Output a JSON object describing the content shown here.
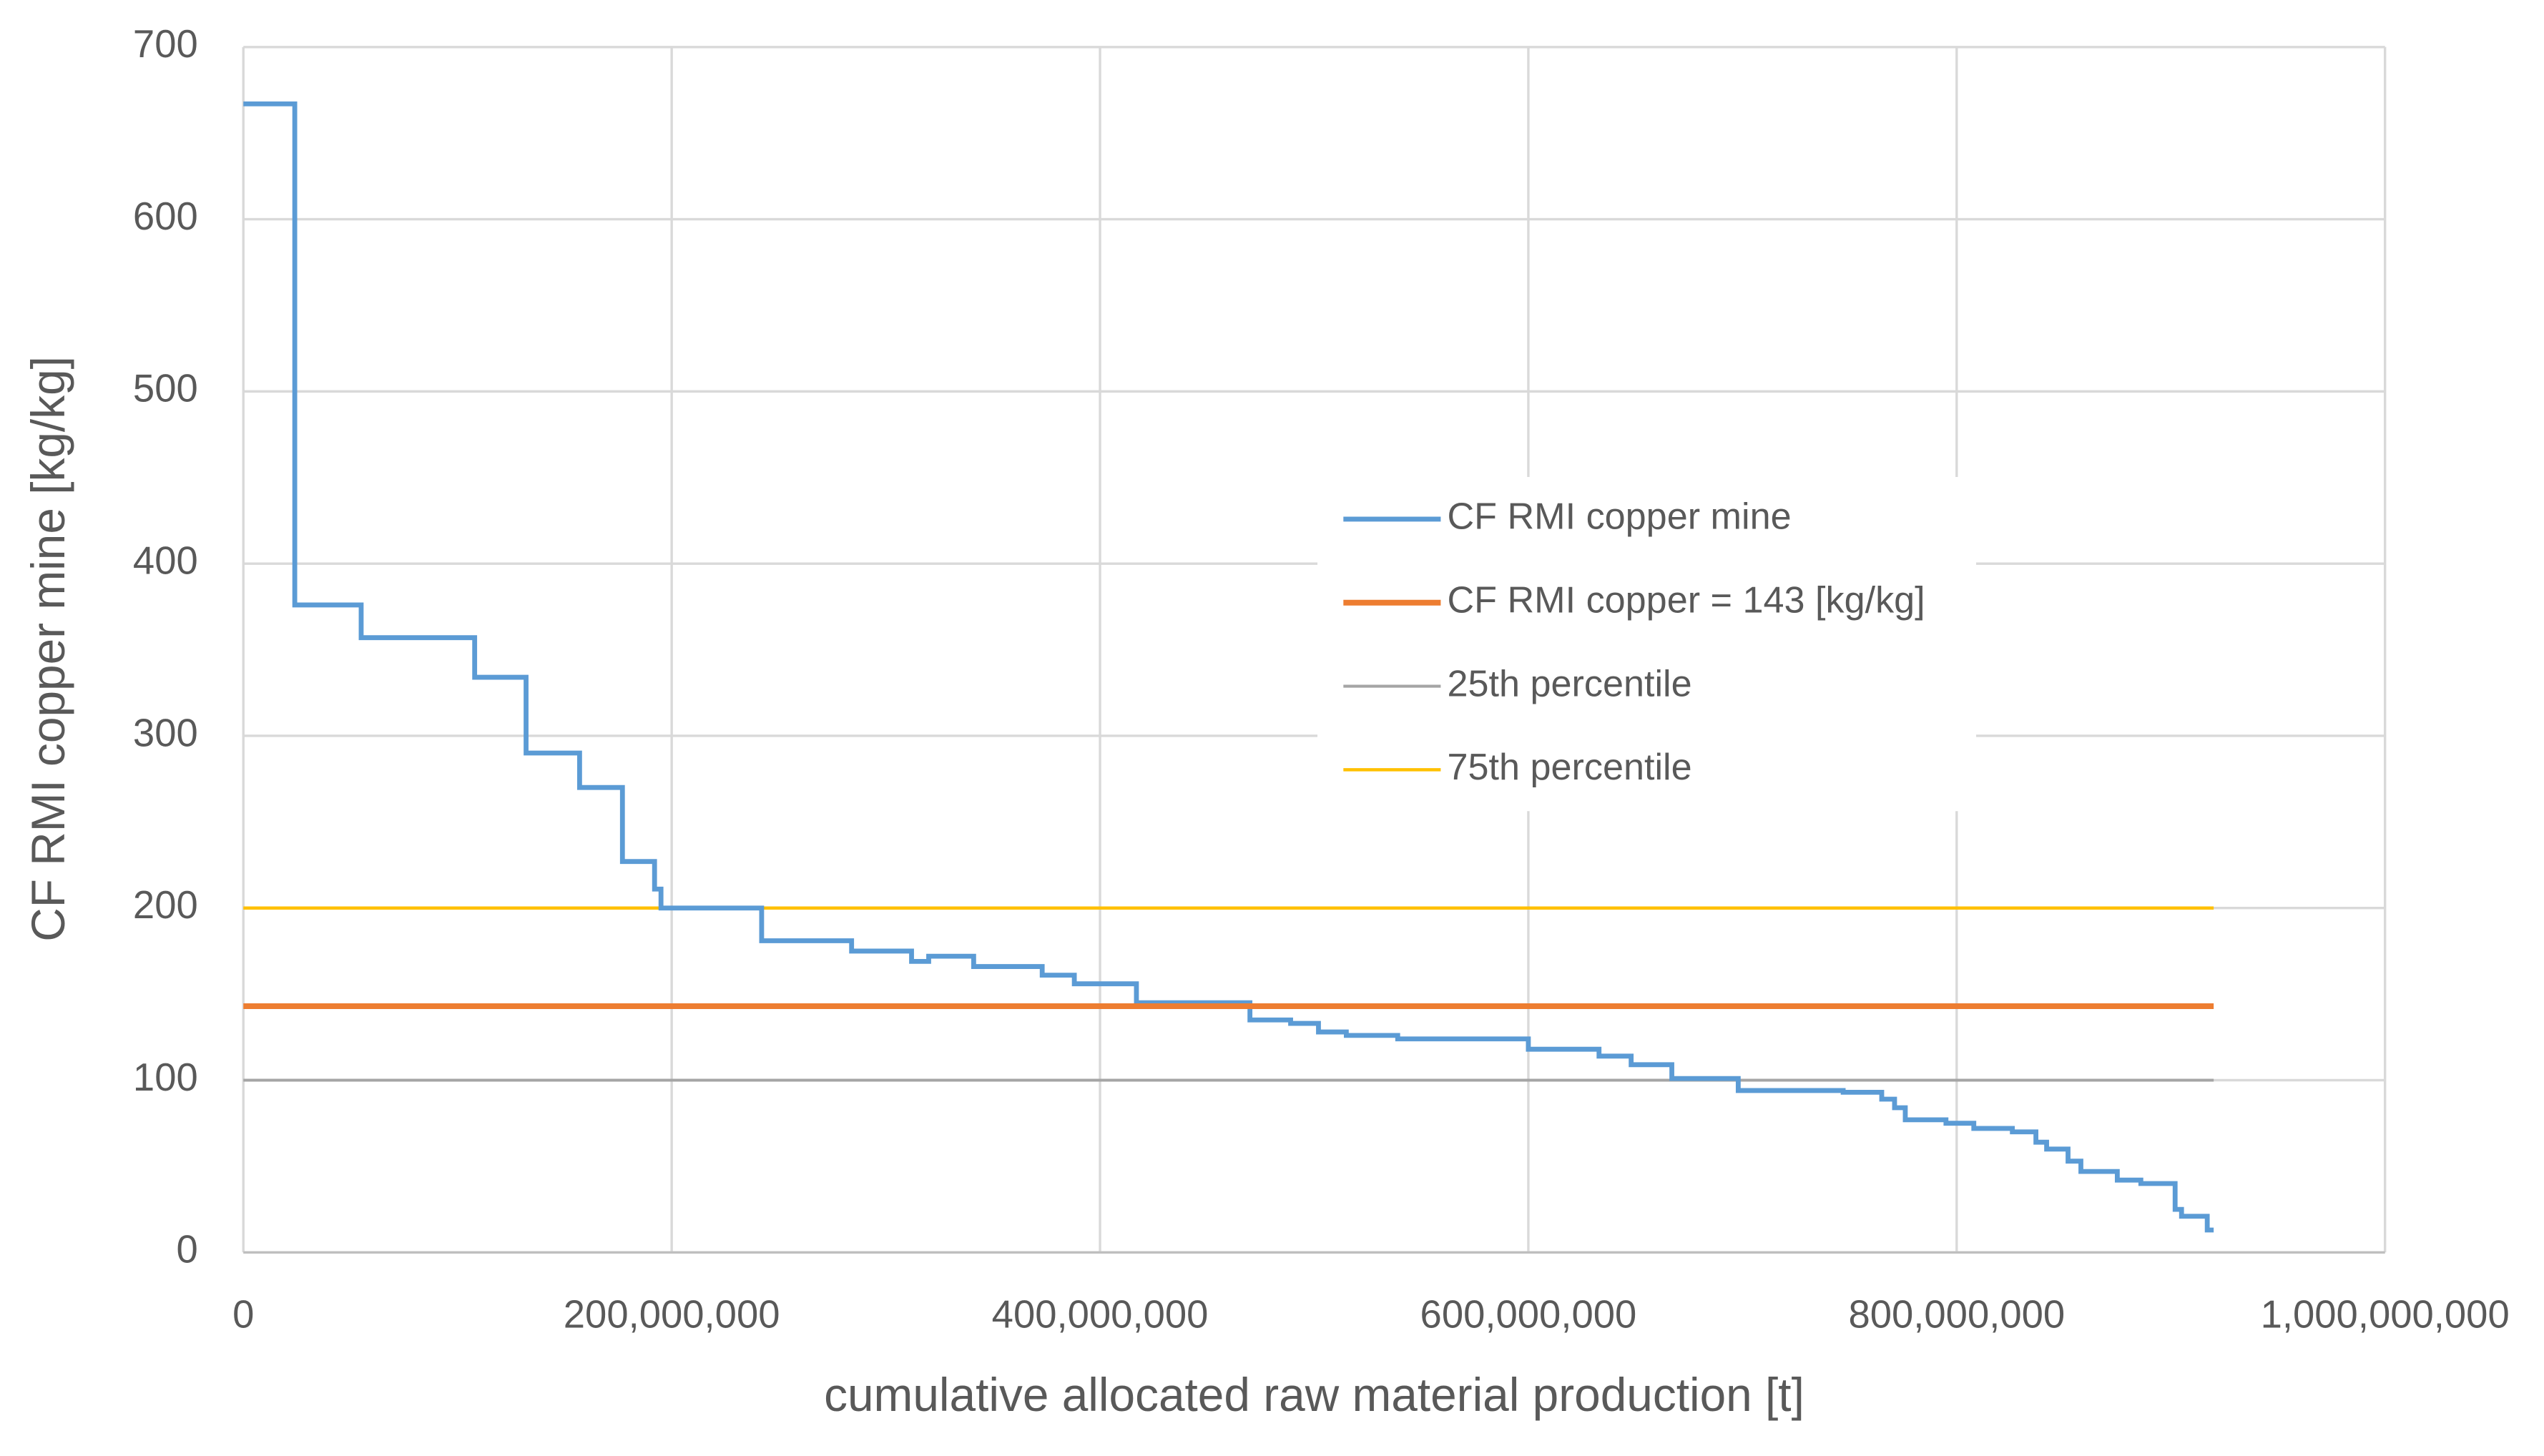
{
  "chart_data": {
    "type": "line",
    "xlabel": "cumulative allocated raw material production [t]",
    "ylabel": "CF RMI copper mine [kg/kg]",
    "xlim": [
      0,
      1000000000
    ],
    "ylim": [
      0,
      700
    ],
    "xticks": [
      0,
      {
        "value": 200000000,
        "label": "200,000,000"
      },
      {
        "value": 400000000,
        "label": "400,000,000"
      },
      {
        "value": 600000000,
        "label": "600,000,000"
      },
      {
        "value": 800000000,
        "label": "800,000,000"
      },
      {
        "value": 1000000000,
        "label": "1,000,000,000"
      }
    ],
    "yticks": [
      0,
      100,
      200,
      300,
      400,
      500,
      600,
      700
    ],
    "grid": true,
    "series": [
      {
        "name": "CF RMI copper mine",
        "color": "#5b9bd5",
        "width": 3,
        "x": [
          0,
          24000000,
          24000000,
          55000000,
          55000000,
          108000000,
          108000000,
          132000000,
          132000000,
          157000000,
          157000000,
          177000000,
          177000000,
          192000000,
          192000000,
          195000000,
          195000000,
          242000000,
          242000000,
          284000000,
          284000000,
          312000000,
          312000000,
          320000000,
          320000000,
          341000000,
          341000000,
          373000000,
          373000000,
          388000000,
          388000000,
          417000000,
          417000000,
          470000000,
          470000000,
          489000000,
          489000000,
          502000000,
          502000000,
          515000000,
          515000000,
          539000000,
          539000000,
          600000000,
          600000000,
          633000000,
          633000000,
          648000000,
          648000000,
          667000000,
          667000000,
          698000000,
          698000000,
          747000000,
          747000000,
          765000000,
          765000000,
          771000000,
          771000000,
          776000000,
          776000000,
          795000000,
          795000000,
          808000000,
          808000000,
          826000000,
          826000000,
          837000000,
          837000000,
          842000000,
          842000000,
          852000000,
          852000000,
          858000000,
          858000000,
          875000000,
          875000000,
          886000000,
          886000000,
          902000000,
          902000000,
          905000000,
          905000000,
          917000000,
          917000000,
          920000000
        ],
        "values": [
          667,
          667,
          376,
          376,
          357,
          357,
          334,
          334,
          290,
          290,
          270,
          270,
          227,
          227,
          211,
          211,
          200,
          200,
          181,
          181,
          175,
          175,
          169,
          169,
          172,
          172,
          166,
          166,
          161,
          161,
          156,
          156,
          145,
          145,
          135,
          135,
          133,
          133,
          128,
          128,
          126,
          126,
          124,
          124,
          118,
          118,
          114,
          114,
          109,
          109,
          101,
          101,
          94,
          94,
          93,
          93,
          89,
          89,
          84,
          84,
          77,
          77,
          75,
          75,
          72,
          72,
          70,
          70,
          64,
          64,
          60,
          60,
          53,
          53,
          47,
          47,
          42,
          42,
          40,
          40,
          25,
          25,
          21,
          21,
          13,
          13
        ]
      },
      {
        "name": "CF RMI copper = 143 [kg/kg]",
        "color": "#ed7d31",
        "width": 3.5,
        "x": [
          0,
          920000000
        ],
        "values": [
          143,
          143
        ]
      },
      {
        "name": "25th percentile",
        "color": "#a5a5a5",
        "width": 1.8,
        "x": [
          0,
          920000000
        ],
        "values": [
          100,
          100
        ]
      },
      {
        "name": "75th percentile",
        "color": "#ffc000",
        "width": 2,
        "x": [
          0,
          920000000
        ],
        "values": [
          200,
          200
        ]
      }
    ]
  }
}
